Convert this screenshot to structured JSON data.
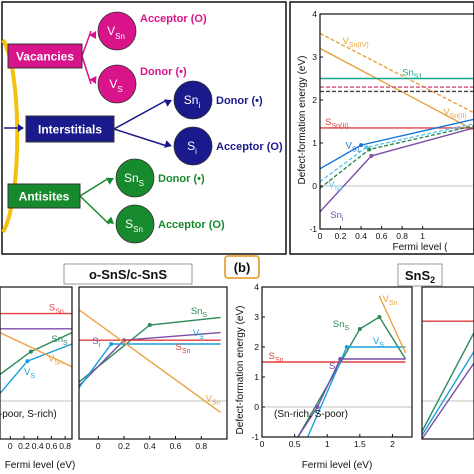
{
  "diagram": {
    "categories": [
      {
        "label": "Vacancies",
        "color": "#d9138a"
      },
      {
        "label": "Interstitials",
        "color": "#1a1a8c"
      },
      {
        "label": "Antisites",
        "color": "#178a2e"
      }
    ],
    "defects": [
      {
        "base": "V",
        "sub": "Sn",
        "type": "Acceptor (O)",
        "color": "#d9138a"
      },
      {
        "base": "V",
        "sub": "S",
        "type": "Donor (•)",
        "color": "#d9138a"
      },
      {
        "base": "Sn",
        "sub": "i",
        "type": "Donor (•)",
        "color": "#1a1a8c"
      },
      {
        "base": "S",
        "sub": "i",
        "type": "Acceptor (O)",
        "color": "#1a1a8c"
      },
      {
        "base": "Sn",
        "sub": "S",
        "type": "Donor (•)",
        "color": "#178a2e"
      },
      {
        "base": "S",
        "sub": "Sn",
        "type": "Acceptor (O)",
        "color": "#178a2e"
      }
    ]
  },
  "titles": {
    "osns": "o-SnS/c-SnS",
    "b": "(b)",
    "sns2_base": "SnS",
    "sns2_sub": "2"
  },
  "chart_data": [
    {
      "type": "line",
      "panel": "top-right",
      "xlabel": "Fermi level (",
      "ylabel": "Defect-formation energy (eV)",
      "xlim": [
        0,
        1.5
      ],
      "ylim": [
        -1,
        4
      ],
      "xticks": [
        "0",
        "0.2",
        "0.4",
        "0.6",
        "0.8",
        "1"
      ],
      "yticks": [
        "-1",
        "0",
        "1",
        "2",
        "3",
        "4"
      ],
      "series": [
        {
          "name": "V_Sn(IV)",
          "color": "#e8a33d",
          "dashed": true,
          "x": [
            0,
            1.5
          ],
          "y": [
            3.55,
            1.7
          ]
        },
        {
          "name": "V_Sn(II)",
          "color": "#e8a33d",
          "x": [
            0,
            1.5
          ],
          "y": [
            3.2,
            1.3
          ]
        },
        {
          "name": "Sn_S1",
          "color": "#17a88f",
          "x": [
            0,
            1.5
          ],
          "y": [
            2.5,
            2.5
          ]
        },
        {
          "name": "",
          "color": "#d94a7a",
          "dashed": true,
          "x": [
            0,
            1.5
          ],
          "y": [
            2.3,
            2.3
          ]
        },
        {
          "name": "",
          "color": "#444444",
          "dashed": true,
          "x": [
            0,
            1.5
          ],
          "y": [
            2.2,
            2.2
          ]
        },
        {
          "name": "S_Sn(II)",
          "color": "#e04040",
          "x": [
            0,
            1.5
          ],
          "y": [
            1.35,
            1.35
          ]
        },
        {
          "name": "V_S1",
          "color": "#1a73d9",
          "x": [
            0,
            0.4,
            1.5
          ],
          "y": [
            0.4,
            0.95,
            1.55
          ]
        },
        {
          "name": "V_S2",
          "color": "#5ec7ee",
          "dashed": true,
          "x": [
            0,
            0.45,
            1.5
          ],
          "y": [
            0.1,
            0.9,
            1.45
          ]
        },
        {
          "name": "",
          "color": "#2b8a57",
          "dashed": true,
          "x": [
            0,
            0.48,
            1.5
          ],
          "y": [
            -0.05,
            0.85,
            1.4
          ]
        },
        {
          "name": "Sn_i",
          "color": "#7b4ea8",
          "x": [
            0,
            0.5,
            1.5
          ],
          "y": [
            -0.6,
            0.7,
            1.35
          ]
        }
      ]
    },
    {
      "type": "line",
      "panel": "bottom-1",
      "xlabel": "Fermi level (eV)",
      "xlim": [
        -0.15,
        0.9
      ],
      "ylim": [
        -1,
        3
      ],
      "xticks": [
        "0",
        "0.2",
        "0.4",
        "0.6",
        "0.8"
      ],
      "annotation": "(Sn-poor, S-rich)",
      "series": [
        {
          "name": "S_Sn",
          "color": "#e04040",
          "x": [
            -0.15,
            0.9
          ],
          "y": [
            2.3,
            2.3
          ]
        },
        {
          "name": "",
          "color": "#7b4ea8",
          "x": [
            -0.15,
            0.9
          ],
          "y": [
            1.9,
            1.9
          ]
        },
        {
          "name": "Sn_S",
          "color": "#2b8a57",
          "x": [
            -0.15,
            0.3,
            0.9
          ],
          "y": [
            0.7,
            1.3,
            1.8
          ]
        },
        {
          "name": "V_S",
          "color": "#1a9fd9",
          "x": [
            -0.15,
            0.25,
            0.9
          ],
          "y": [
            0.2,
            1.05,
            1.5
          ]
        },
        {
          "name": "V_Sn",
          "color": "#e8a33d",
          "x": [
            -0.15,
            0.9
          ],
          "y": [
            1.8,
            0.9
          ]
        }
      ]
    },
    {
      "type": "line",
      "panel": "bottom-2",
      "xlim": [
        -0.15,
        1.0
      ],
      "ylim": [
        -1,
        3
      ],
      "xticks": [
        "0",
        "0.2",
        "0.4",
        "0.6",
        "0.8"
      ],
      "series": [
        {
          "name": "Sn_S",
          "color": "#2b8a57",
          "x": [
            -0.15,
            0.4,
            0.95
          ],
          "y": [
            0.5,
            2.0,
            2.2
          ]
        },
        {
          "name": "S_i",
          "color": "#7b4ea8",
          "x": [
            -0.15,
            0.2,
            0.95
          ],
          "y": [
            0.4,
            1.6,
            1.8
          ]
        },
        {
          "name": "V_S",
          "color": "#1a9fd9",
          "x": [
            -0.15,
            0.1,
            0.95
          ],
          "y": [
            0.35,
            1.5,
            1.5
          ]
        },
        {
          "name": "S_Sn",
          "color": "#e04040",
          "x": [
            -0.15,
            0.95
          ],
          "y": [
            1.6,
            1.6
          ]
        },
        {
          "name": "V_Sn",
          "color": "#e8a33d",
          "x": [
            -0.15,
            0.95
          ],
          "y": [
            2.4,
            -0.3
          ]
        }
      ]
    },
    {
      "type": "line",
      "panel": "bottom-3",
      "xlabel": "Fermi level (eV)",
      "ylabel": "Defect-formation energy (eV)",
      "xlim": [
        0,
        2.3
      ],
      "ylim": [
        -1,
        4
      ],
      "xticks": [
        "0",
        "0.5",
        "1",
        "1.5",
        "2"
      ],
      "yticks": [
        "-1",
        "0",
        "1",
        "2",
        "3",
        "4"
      ],
      "annotation": "(Sn-rich, S-poor)",
      "series": [
        {
          "name": "S_Sn",
          "color": "#e04040",
          "x": [
            0,
            2.2
          ],
          "y": [
            1.5,
            1.5
          ]
        },
        {
          "name": "Sn_S",
          "color": "#2b8a57",
          "x": [
            0.55,
            1.5,
            1.8,
            2.2
          ],
          "y": [
            -1.0,
            2.6,
            3.0,
            1.6
          ]
        },
        {
          "name": "V_S",
          "color": "#1a9fd9",
          "x": [
            0.7,
            1.3,
            2.2
          ],
          "y": [
            -1.0,
            2.0,
            2.0
          ]
        },
        {
          "name": "S_i",
          "color": "#7b4ea8",
          "x": [
            0.55,
            0.85,
            1.2,
            2.2
          ],
          "y": [
            -1.0,
            0.0,
            1.6,
            1.6
          ]
        },
        {
          "name": "V_Sn",
          "color": "#e8a33d",
          "x": [
            1.8,
            2.2
          ],
          "y": [
            3.7,
            1.8
          ]
        }
      ]
    },
    {
      "type": "line",
      "panel": "bottom-4",
      "xlim": [
        0,
        0.9
      ],
      "ylim": [
        -1,
        3
      ],
      "series": [
        {
          "name": "",
          "color": "#e04040",
          "x": [
            0,
            0.9
          ],
          "y": [
            2.1,
            2.1
          ]
        },
        {
          "name": "",
          "color": "#2b8a57",
          "x": [
            0,
            0.9
          ],
          "y": [
            -0.8,
            1.8
          ]
        },
        {
          "name": "",
          "color": "#1a9fd9",
          "x": [
            0,
            0.9
          ],
          "y": [
            -0.9,
            1.3
          ]
        },
        {
          "name": "",
          "color": "#7b4ea8",
          "x": [
            0,
            0.9
          ],
          "y": [
            -1.0,
            1.0
          ]
        }
      ]
    }
  ]
}
